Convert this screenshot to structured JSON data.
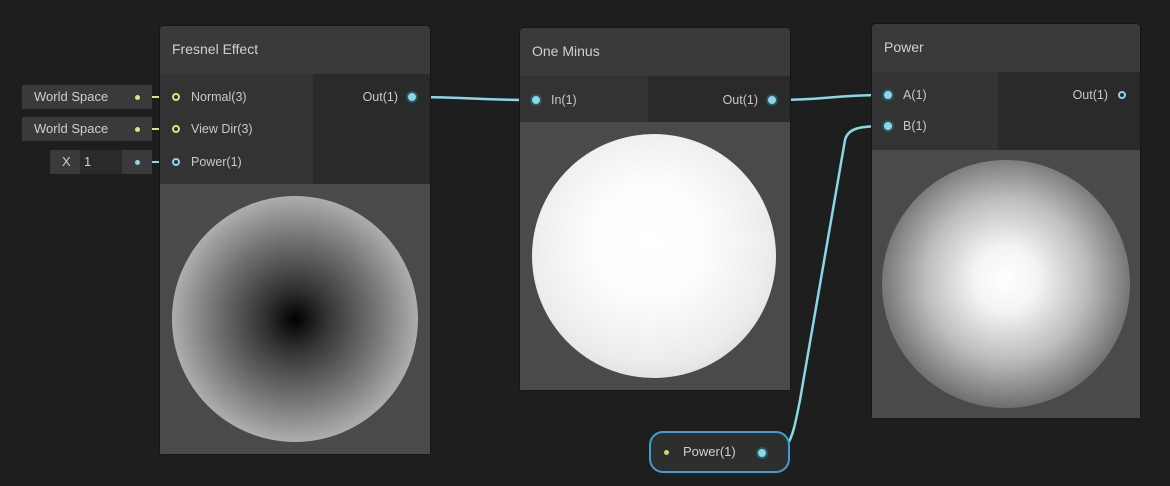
{
  "nodes": {
    "fresnel": {
      "title": "Fresnel Effect",
      "inputs": [
        "Normal(3)",
        "View Dir(3)",
        "Power(1)"
      ],
      "output": "Out(1)"
    },
    "one_minus": {
      "title": "One Minus",
      "input": "In(1)",
      "output": "Out(1)"
    },
    "power": {
      "title": "Power",
      "inputs": [
        "A(1)",
        "B(1)"
      ],
      "output": "Out(1)"
    }
  },
  "fields": {
    "normal_space": "World Space",
    "view_dir_space": "World Space",
    "power_axis": "X",
    "power_value": "1"
  },
  "property": {
    "label": "Power(1)"
  },
  "colors": {
    "wire_cyan": "#8ad7e6",
    "wire_yellow": "#e6e07a",
    "background": "#1e1e1e",
    "node": "#393939",
    "selection": "#3b9fd6"
  }
}
